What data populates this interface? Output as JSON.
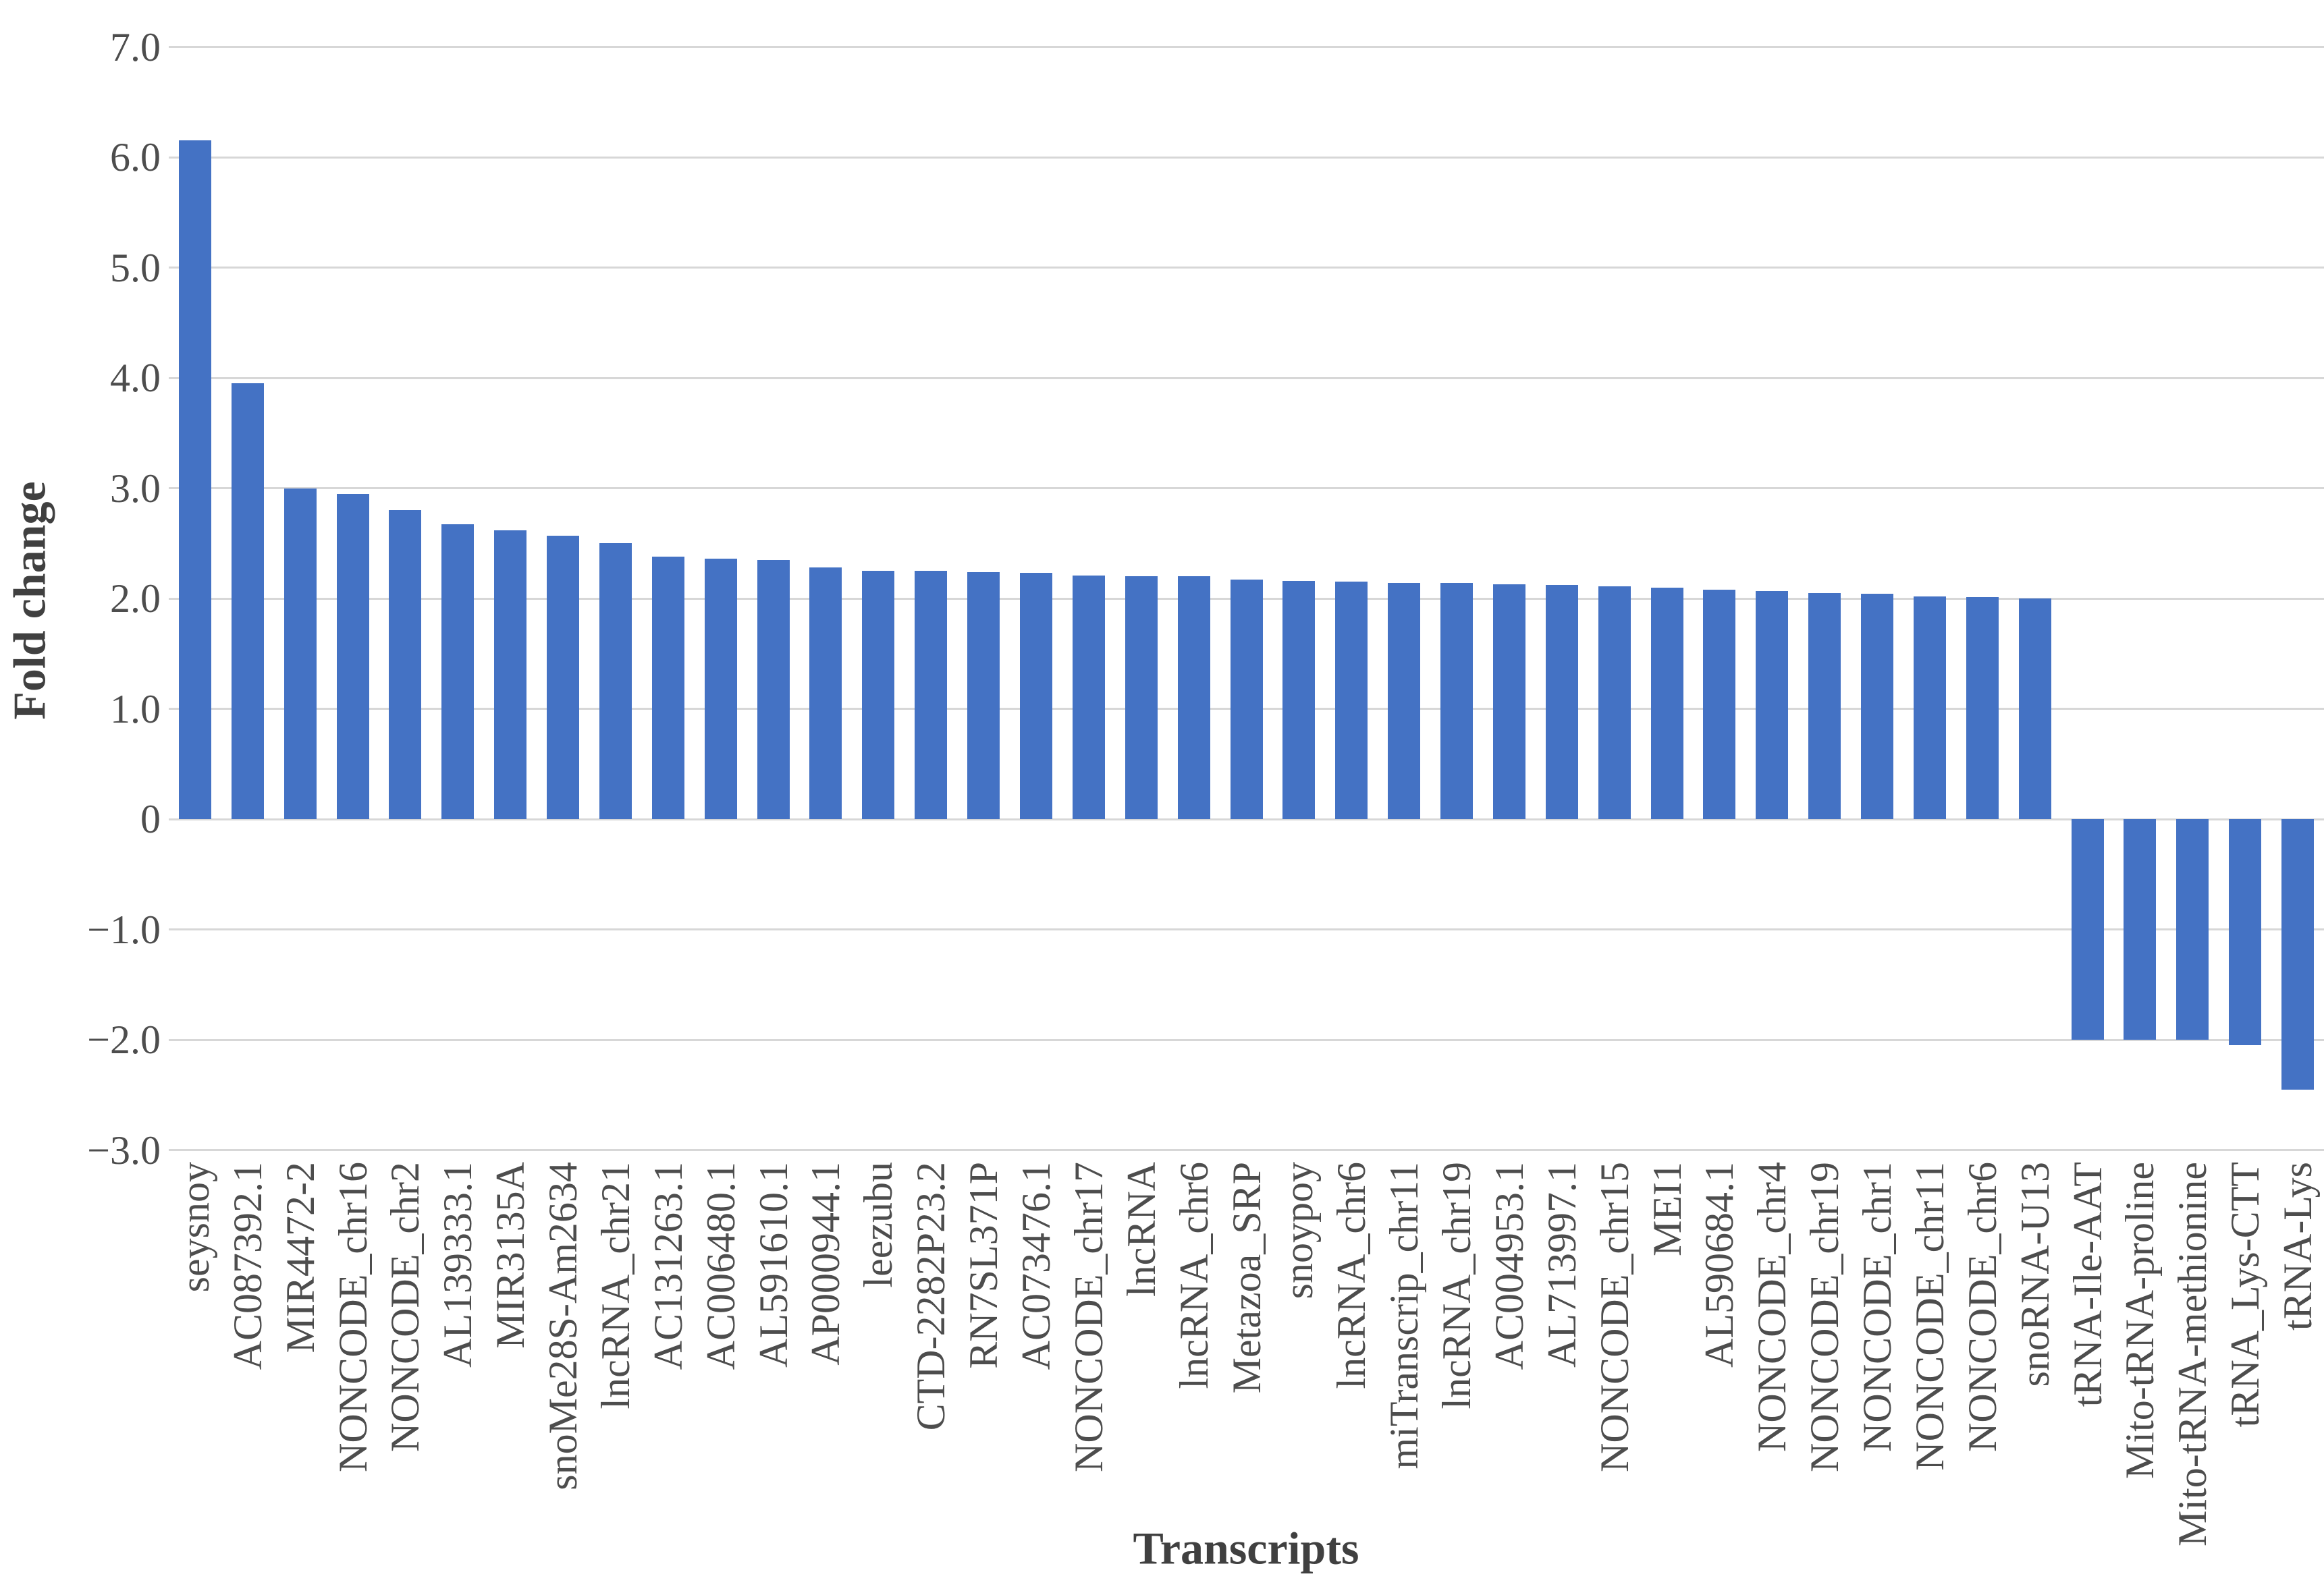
{
  "chart_data": {
    "type": "bar",
    "title": "",
    "xlabel": "Transcripts",
    "ylabel": "Fold change",
    "ylim": [
      -3.0,
      7.0
    ],
    "grid": true,
    "legend": "none",
    "bar_color": "#4472c4",
    "gridline_color": "#d7d7d7",
    "text_color": "#4d4d4d",
    "ytick_values": [
      7,
      6,
      5,
      4,
      3,
      2,
      1,
      0,
      -1,
      -2,
      -3
    ],
    "ytick_labels": [
      "7.0",
      "6.0",
      "5.0",
      "4.0",
      "3.0",
      "2.0",
      "1.0",
      "0",
      "−1.0",
      "−2.0",
      "−3.0"
    ],
    "categories": [
      "seysnoy",
      "AC087392.1",
      "MIR4472-2",
      "NONCODE_chr16",
      "NONCODE_chr2",
      "AL139333.1",
      "MIR3135A",
      "snoMe28S-Am2634",
      "lncRNA_chr21",
      "AC131263.1",
      "AC006480.1",
      "AL591610.1",
      "AP000944.1",
      "leezubu",
      "CTD-2282P23.2",
      "RN7SL371P",
      "AC073476.1",
      "NONCODE_chr17",
      "lncRNA",
      "lncRNA_chr6",
      "Metazoa_SRP",
      "snoypoy",
      "lncRNA_chr6",
      "miTranscrip_chr11",
      "lncRNA_chr19",
      "AC004953.1",
      "AL713997.1",
      "NONCODE_chr15",
      "MEI1",
      "AL590684.1",
      "NONCODE_chr4",
      "NONCODE_chr19",
      "NONCODE_chr1",
      "NONCODE_chr11",
      "NONCODE_chr6",
      "snoRNA-U13",
      "tRNA-Ile-AAT",
      "Mito-tRNA-proline",
      "Mito-tRNA-methionine",
      "tRNA_Lys-CTT",
      "tRNA-Lys"
    ],
    "values": [
      6.15,
      3.95,
      3.0,
      2.95,
      2.8,
      2.67,
      2.62,
      2.57,
      2.5,
      2.38,
      2.36,
      2.35,
      2.28,
      2.25,
      2.25,
      2.24,
      2.23,
      2.21,
      2.2,
      2.2,
      2.17,
      2.16,
      2.15,
      2.14,
      2.14,
      2.13,
      2.12,
      2.11,
      2.1,
      2.08,
      2.07,
      2.05,
      2.04,
      2.02,
      2.01,
      2.0,
      -2.0,
      -2.0,
      -2.0,
      -2.05,
      -2.45
    ]
  }
}
